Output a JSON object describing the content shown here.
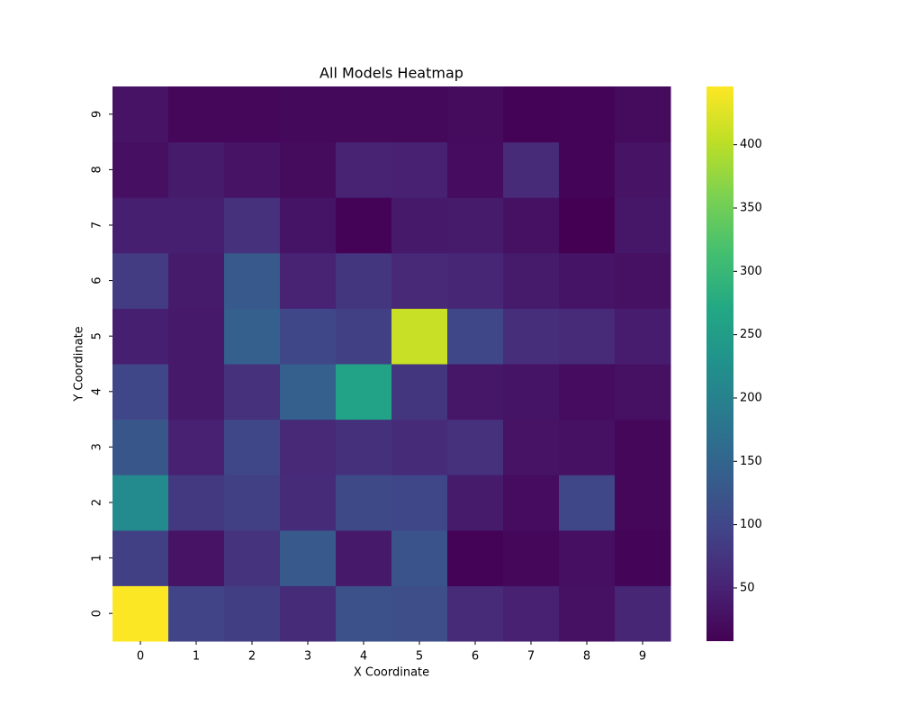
{
  "chart_data": {
    "type": "heatmap",
    "title": "All Models Heatmap",
    "x_label": "X Coordinate",
    "y_label": "Y Coordinate",
    "x_categories": [
      "0",
      "1",
      "2",
      "3",
      "4",
      "5",
      "6",
      "7",
      "8",
      "9"
    ],
    "y_categories": [
      "0",
      "1",
      "2",
      "3",
      "4",
      "5",
      "6",
      "7",
      "8",
      "9"
    ],
    "z": [
      [
        445,
        95,
        88,
        62,
        115,
        112,
        60,
        48,
        28,
        55
      ],
      [
        90,
        30,
        72,
        130,
        38,
        120,
        10,
        15,
        25,
        12
      ],
      [
        215,
        80,
        90,
        62,
        105,
        100,
        40,
        22,
        100,
        15
      ],
      [
        125,
        48,
        100,
        58,
        68,
        62,
        70,
        30,
        28,
        15
      ],
      [
        100,
        38,
        70,
        140,
        260,
        75,
        35,
        32,
        22,
        28
      ],
      [
        45,
        38,
        140,
        100,
        90,
        410,
        100,
        65,
        60,
        42
      ],
      [
        85,
        40,
        130,
        50,
        75,
        58,
        55,
        40,
        32,
        28
      ],
      [
        45,
        45,
        70,
        32,
        10,
        38,
        40,
        28,
        8,
        35
      ],
      [
        25,
        40,
        30,
        20,
        50,
        48,
        22,
        60,
        12,
        30
      ],
      [
        30,
        15,
        15,
        18,
        18,
        18,
        20,
        10,
        12,
        20
      ]
    ],
    "colormap": "viridis",
    "zlim": [
      8,
      446
    ],
    "zticks": [
      50,
      100,
      150,
      200,
      250,
      300,
      350,
      400
    ]
  }
}
